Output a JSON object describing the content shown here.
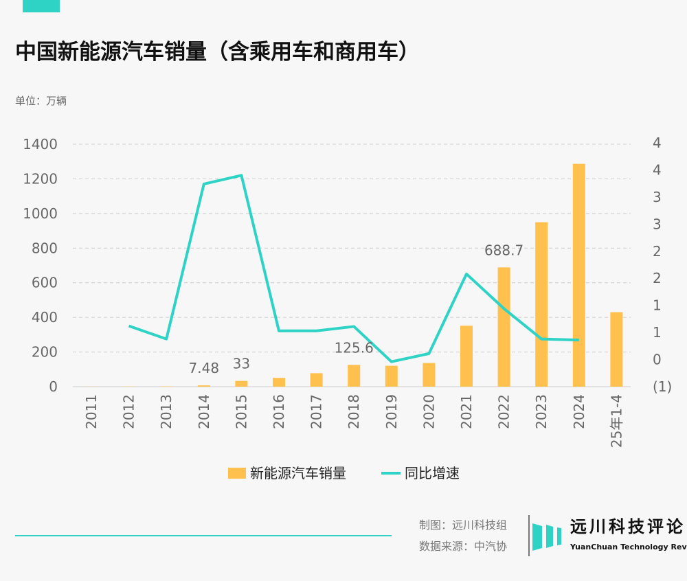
{
  "header": {
    "title": "中国新能源汽车销量（含乘用车和商用车）",
    "unit": "单位：万辆"
  },
  "footer": {
    "made_by": "制图：远川科技组",
    "source": "数据来源：中汽协",
    "logo_cn": "远川科技评论",
    "logo_en": "YuanChuan Technology Review"
  },
  "colors": {
    "bar": "#ffc04d",
    "line": "#2ed3c6",
    "negative_label": "#ff0000",
    "accent": "#2ed3c6"
  },
  "chart_data": {
    "type": "bar+line",
    "categories": [
      "2011",
      "2012",
      "2013",
      "2014",
      "2015",
      "2016",
      "2017",
      "2018",
      "2019",
      "2020",
      "2021",
      "2022",
      "2023",
      "2024",
      "25年1-4"
    ],
    "series": [
      {
        "name": "新能源汽车销量",
        "type": "bar",
        "axis": "left",
        "values": [
          0.8,
          1.3,
          1.8,
          7.48,
          33,
          50.7,
          77.7,
          125.6,
          120.6,
          136.7,
          352.1,
          688.7,
          949.5,
          1286.6,
          430
        ]
      },
      {
        "name": "同比增速",
        "type": "line",
        "axis": "right",
        "values": [
          null,
          0.62,
          0.38,
          3.24,
          3.4,
          0.53,
          0.53,
          0.61,
          -0.04,
          0.11,
          1.58,
          0.94,
          0.38,
          0.36,
          null
        ]
      }
    ],
    "data_labels": [
      {
        "index": 3,
        "text": "7.48"
      },
      {
        "index": 4,
        "text": "33"
      },
      {
        "index": 7,
        "text": "125.6"
      },
      {
        "index": 11,
        "text": "688.7"
      }
    ],
    "left_axis": {
      "ylim": [
        0,
        1400
      ],
      "ticks": [
        "0",
        "200",
        "400",
        "600",
        "800",
        "1000",
        "1200",
        "1400"
      ]
    },
    "right_axis": {
      "ylim": [
        -0.5,
        4
      ],
      "ticks": [
        "(1)",
        "0",
        "1",
        "1",
        "2",
        "2",
        "3",
        "3",
        "4",
        "4"
      ]
    },
    "grid": true,
    "legend_placement": "bottom"
  }
}
